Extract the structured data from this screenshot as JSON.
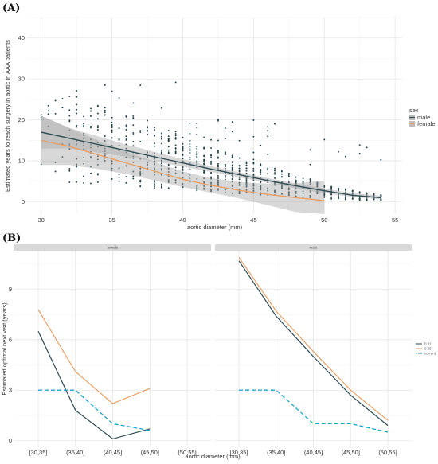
{
  "chart_data": [
    {
      "panel": "(A)",
      "type": "scatter",
      "xlabel": "aortic diameter (mm)",
      "ylabel": "Estimated years to reach surgery in aortic in AAA patients",
      "xlim": [
        29,
        55.5
      ],
      "ylim": [
        -3,
        45
      ],
      "xticks": [
        30,
        35,
        40,
        45,
        50,
        55
      ],
      "yticks": [
        0,
        10,
        20,
        30,
        40
      ],
      "grid": true,
      "legend": {
        "title": "sex",
        "placement": "right",
        "entries": [
          "male",
          "female"
        ]
      },
      "colors": {
        "male": "#2c4a52",
        "female": "#e8a066",
        "band": "#a9a9a9",
        "points": "#1e3f47"
      },
      "series": [
        {
          "name": "male",
          "x": [
            30,
            32,
            34,
            36,
            38,
            40,
            42,
            44,
            46,
            48,
            50,
            52,
            54
          ],
          "y": [
            17,
            15.5,
            14,
            12.5,
            11,
            9.5,
            8,
            6.6,
            5.2,
            3.9,
            2.7,
            1.6,
            1.0
          ],
          "band_lower": [
            13,
            13,
            12,
            11,
            9.8,
            8.6,
            7.3,
            6.0,
            4.6,
            3.3,
            2.1,
            1.2,
            0.6
          ],
          "band_upper": [
            21,
            18,
            16,
            14,
            12.2,
            10.4,
            8.7,
            7.2,
            5.8,
            4.5,
            3.3,
            2.1,
            1.5
          ]
        },
        {
          "name": "female",
          "x": [
            30,
            32,
            34,
            36,
            38,
            40,
            42,
            44,
            46,
            48,
            50
          ],
          "y": [
            15,
            13.5,
            11.5,
            9.5,
            7.5,
            5.5,
            4,
            2.8,
            1.8,
            1.0,
            0.3
          ],
          "band_lower": [
            9,
            9,
            8,
            6.8,
            5.2,
            3.6,
            2.2,
            0.8,
            -0.8,
            -2.5,
            -4.5
          ],
          "band_upper": [
            21,
            18,
            15,
            12.2,
            9.8,
            7.4,
            5.8,
            4.8,
            4.4,
            4.5,
            5.2
          ]
        }
      ],
      "scatter_range": {
        "x_from": 30,
        "x_to": 54
      }
    },
    {
      "panel": "(B)",
      "type": "line",
      "facets": [
        "female",
        "male"
      ],
      "categories": [
        "[30,35]",
        "(35,40]",
        "(40,45]",
        "(45,50]",
        "(50,55]"
      ],
      "xlabel": "aortic diameter (mm)",
      "ylabel": "Estimated optimal next visit (years)",
      "ylim": [
        -0.4,
        11.3
      ],
      "yticks": [
        0,
        3,
        6,
        9
      ],
      "grid": true,
      "legend": {
        "placement": "right",
        "entries": [
          "0.01",
          "0.05",
          "current"
        ]
      },
      "colors": {
        "0.01": "#2c4a52",
        "0.05": "#e8a066",
        "current": "#1aa6c9"
      },
      "series": [
        {
          "facet": "female",
          "name": "0.01",
          "values": [
            6.5,
            1.8,
            0.1,
            0.7,
            null
          ]
        },
        {
          "facet": "female",
          "name": "0.05",
          "values": [
            7.8,
            4.1,
            2.2,
            3.1,
            null
          ]
        },
        {
          "facet": "female",
          "name": "current",
          "values": [
            3.0,
            3.0,
            1.0,
            0.6,
            null
          ]
        },
        {
          "facet": "male",
          "name": "0.01",
          "values": [
            10.7,
            7.4,
            5.0,
            2.7,
            0.9
          ]
        },
        {
          "facet": "male",
          "name": "0.05",
          "values": [
            10.9,
            7.7,
            5.3,
            3.0,
            1.2
          ]
        },
        {
          "facet": "male",
          "name": "current",
          "values": [
            3.0,
            3.0,
            1.0,
            1.0,
            0.5
          ]
        }
      ]
    }
  ]
}
